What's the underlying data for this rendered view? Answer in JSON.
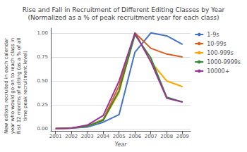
{
  "chart_data": {
    "type": "line",
    "title": "Rise and Fall in Recruitment of Different Editing Classes by Year\n(Normalized as a % of peak recruitment year for each class)",
    "xlabel": "Year",
    "ylabel": "New editors recruited in each calendar\nyear who would go on to reach class in\nfirst 12 months of editing (as a % of all\ntime peak recruitment level)",
    "x": [
      2001,
      2002,
      2003,
      2004,
      2005,
      2006,
      2007,
      2008,
      2009
    ],
    "series": [
      {
        "name": "1-9s",
        "color": "#4472C4",
        "values": [
          0.003,
          0.01,
          0.02,
          0.07,
          0.15,
          0.8,
          1.0,
          0.97,
          0.88
        ]
      },
      {
        "name": "10-99s",
        "color": "#E05C1A",
        "values": [
          0.003,
          0.01,
          0.03,
          0.1,
          0.45,
          1.0,
          0.84,
          0.78,
          0.75
        ]
      },
      {
        "name": "100-999s",
        "color": "#FFA500",
        "values": [
          0.003,
          0.01,
          0.03,
          0.09,
          0.38,
          1.0,
          0.7,
          0.5,
          0.44
        ]
      },
      {
        "name": "1000-9999s",
        "color": "#2E8B2E",
        "values": [
          0.003,
          0.01,
          0.03,
          0.09,
          0.4,
          0.98,
          0.74,
          0.33,
          0.28
        ]
      },
      {
        "name": "10000+",
        "color": "#993399",
        "values": [
          0.003,
          0.01,
          0.04,
          0.14,
          0.5,
          1.0,
          0.7,
          0.32,
          0.28
        ]
      }
    ],
    "xlim": [
      2000.7,
      2009.5
    ],
    "xticks": [
      2001,
      2002,
      2003,
      2004,
      2005,
      2006,
      2007,
      2008,
      2009
    ],
    "ylim": [
      -0.02,
      1.05
    ],
    "yticks": [
      {
        "value": 0,
        "label": "0.00"
      },
      {
        "value": 0.25,
        "label": "0.25"
      },
      {
        "value": 0.5,
        "label": "0.50"
      },
      {
        "value": 0.75,
        "label": "0.75"
      },
      {
        "value": 1.0,
        "label": "1.00"
      }
    ],
    "grid": "y",
    "legend": "right"
  }
}
